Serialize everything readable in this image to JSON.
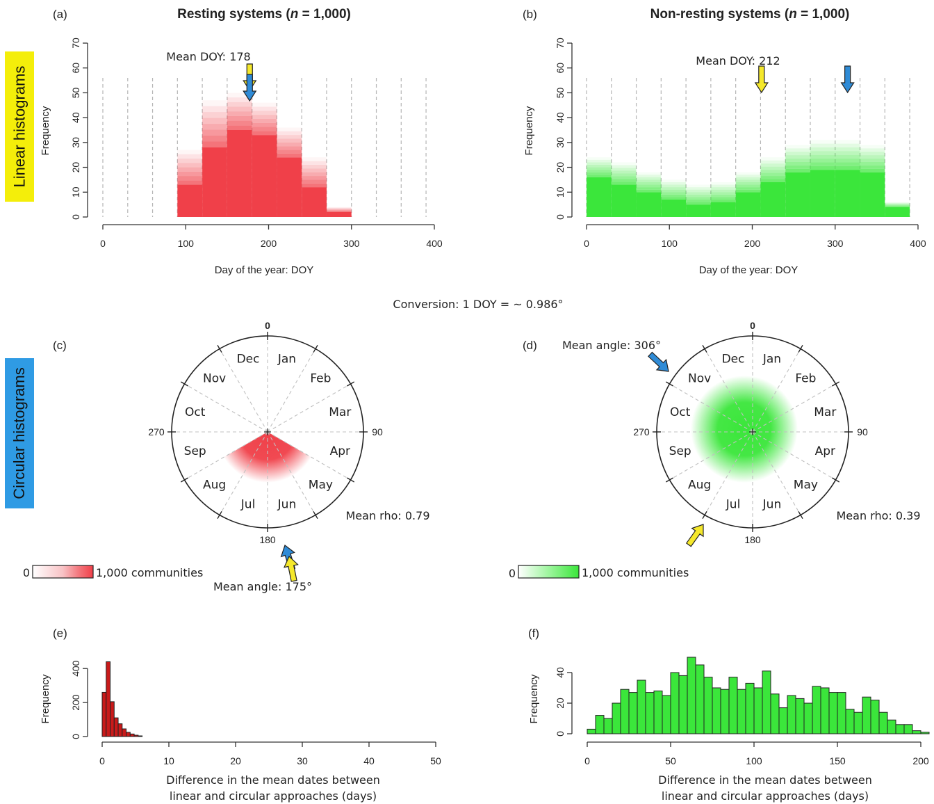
{
  "side_labels": {
    "linear": "Linear histograms",
    "circular": "Circular histograms",
    "linear_color": "#f4ee0a",
    "circular_color": "#2f9be4"
  },
  "conversion_note": "Conversion: 1 DOY = ~ 0.986°",
  "colors": {
    "red": "#f04049",
    "red_dark": "#c91a1a",
    "green": "#3be63b",
    "yellow_arrow": "#f5e82b",
    "blue_arrow": "#2f8bd6",
    "axis": "#333333"
  },
  "chart_data": [
    {
      "panel": "(a)",
      "type": "bar",
      "title_main": "Resting systems",
      "title_n": "n",
      "title_rest": " = 1,000)",
      "title_open": "(",
      "xlabel": "Day of the year: DOY",
      "ylabel": "Frequency",
      "xlim": [
        0,
        400
      ],
      "ylim": [
        0,
        70
      ],
      "xticks": [
        0,
        100,
        200,
        300,
        400
      ],
      "yticks": [
        0,
        10,
        20,
        30,
        40,
        50,
        60,
        70
      ],
      "bin_width": 30,
      "bin_starts": [
        90,
        120,
        150,
        180,
        210,
        240,
        270
      ],
      "values": [
        13,
        28,
        35,
        33,
        24,
        12,
        2
      ],
      "upper": [
        27,
        47,
        50,
        46,
        36,
        24,
        4
      ],
      "grid_lines_x": [
        0,
        30,
        60,
        90,
        120,
        150,
        180,
        210,
        240,
        270,
        300,
        330,
        360,
        390
      ],
      "annotation": "Mean DOY: 178",
      "mean_doy": 178
    },
    {
      "panel": "(b)",
      "type": "bar",
      "title_main": "Non-resting systems",
      "title_n": "n",
      "title_rest": " = 1,000)",
      "title_open": "(",
      "xlabel": "Day of the year: DOY",
      "ylabel": "Frequency",
      "xlim": [
        0,
        400
      ],
      "ylim": [
        0,
        70
      ],
      "xticks": [
        0,
        100,
        200,
        300,
        400
      ],
      "yticks": [
        0,
        10,
        20,
        30,
        40,
        50,
        60,
        70
      ],
      "bin_width": 30,
      "bin_starts": [
        0,
        30,
        60,
        90,
        120,
        150,
        180,
        210,
        240,
        270,
        300,
        330,
        360
      ],
      "values": [
        16,
        13,
        10,
        7,
        5,
        6,
        10,
        14,
        18,
        19,
        19,
        18,
        4
      ],
      "upper": [
        24,
        22,
        18,
        15,
        13,
        14,
        18,
        24,
        29,
        31,
        31,
        29,
        6
      ],
      "grid_lines_x": [
        0,
        30,
        60,
        90,
        120,
        150,
        180,
        210,
        240,
        270,
        300,
        330,
        360,
        390
      ],
      "annotation": "Mean DOY: 212",
      "mean_doy": 212,
      "blue_arrow_doy": 315
    },
    {
      "panel": "(c)",
      "type": "circular",
      "months": [
        "Jan",
        "Feb",
        "Mar",
        "Apr",
        "May",
        "Jun",
        "Jul",
        "Aug",
        "Sep",
        "Oct",
        "Nov",
        "Dec"
      ],
      "angle_labels": [
        "0",
        "90",
        "180",
        "270"
      ],
      "sector_start_deg": 120,
      "sector_end_deg": 240,
      "radius_fraction": 0.22,
      "mean_angle_label": "Mean angle: 175°",
      "mean_angle": 175,
      "mean_rho_label": "Mean rho: 0.79",
      "legend_low": "0",
      "legend_high": "1,000 communities"
    },
    {
      "panel": "(d)",
      "type": "circular",
      "months": [
        "Jan",
        "Feb",
        "Mar",
        "Apr",
        "May",
        "Jun",
        "Jul",
        "Aug",
        "Sep",
        "Oct",
        "Nov",
        "Dec"
      ],
      "angle_labels": [
        "0",
        "90",
        "180",
        "270"
      ],
      "radius_fraction": 0.36,
      "mean_angle_label": "Mean angle: 306°",
      "mean_angle": 306,
      "mean_rho_label": "Mean rho: 0.39",
      "legend_low": "0",
      "legend_high": "1,000 communities"
    },
    {
      "panel": "(e)",
      "type": "bar",
      "xlabel_line1": "Difference in the mean dates between",
      "xlabel_line2": "linear and circular approaches (days)",
      "ylabel": "Frequency",
      "xlim": [
        0,
        50
      ],
      "ylim": [
        0,
        450
      ],
      "xticks": [
        0,
        10,
        20,
        30,
        40,
        50
      ],
      "yticks": [
        0,
        200,
        400
      ],
      "bin_width": 0.6,
      "bin_starts": [
        0,
        0.6,
        1.2,
        1.8,
        2.4,
        3.0,
        3.6,
        4.2,
        4.8,
        5.4
      ],
      "values": [
        260,
        440,
        205,
        110,
        75,
        45,
        25,
        15,
        8,
        4
      ]
    },
    {
      "panel": "(f)",
      "type": "bar",
      "xlabel_line1": "Difference in the mean dates between",
      "xlabel_line2": "linear and circular approaches (days)",
      "ylabel": "Frequency",
      "xlim": [
        0,
        200
      ],
      "ylim": [
        0,
        50
      ],
      "xticks": [
        0,
        50,
        100,
        150,
        200
      ],
      "yticks": [
        0,
        20,
        40
      ],
      "bin_width": 5,
      "values": [
        3,
        12,
        10,
        20,
        29,
        27,
        35,
        27,
        28,
        25,
        40,
        38,
        50,
        45,
        37,
        30,
        29,
        37,
        29,
        33,
        30,
        41,
        26,
        17,
        25,
        23,
        20,
        31,
        30,
        27,
        27,
        16,
        14,
        24,
        22,
        14,
        9,
        6,
        6,
        2,
        1
      ]
    }
  ]
}
